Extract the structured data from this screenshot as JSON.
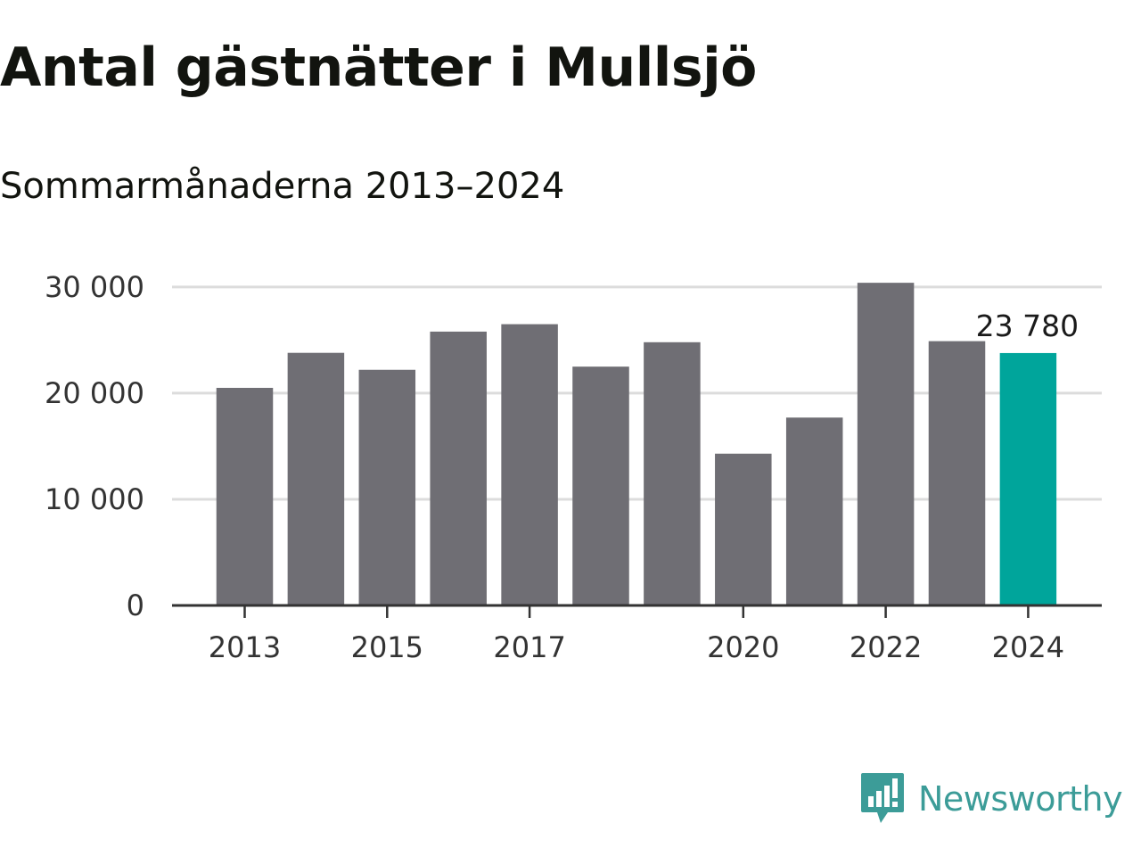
{
  "chart_data": {
    "type": "bar",
    "title": "Antal gästnätter i Mullsjö",
    "subtitle": "Sommarmånaderna 2013–2024",
    "categories": [
      "2013",
      "2014",
      "2015",
      "2016",
      "2017",
      "2018",
      "2019",
      "2020",
      "2021",
      "2022",
      "2023",
      "2024"
    ],
    "values": [
      20500,
      23800,
      22200,
      25800,
      26500,
      22500,
      24800,
      14300,
      17700,
      30400,
      24900,
      23780
    ],
    "ylim": [
      0,
      31000
    ],
    "yticks": [
      0,
      10000,
      20000,
      30000
    ],
    "ytick_labels": [
      "0",
      "10 000",
      "20 000",
      "30 000"
    ],
    "xtick_labels": [
      "2013",
      "2015",
      "2017",
      "2020",
      "2022",
      "2024"
    ],
    "annotation": {
      "category": "2024",
      "text": "23 780"
    },
    "grid": true,
    "colors": {
      "bar": "#6f6e74",
      "highlight": "#00a59b",
      "grid": "#dcdcdc",
      "axis": "#333333"
    }
  },
  "brand": {
    "name": "Newsworthy",
    "icon": "newsworthy-chart-icon",
    "color": "#3c9c98"
  }
}
